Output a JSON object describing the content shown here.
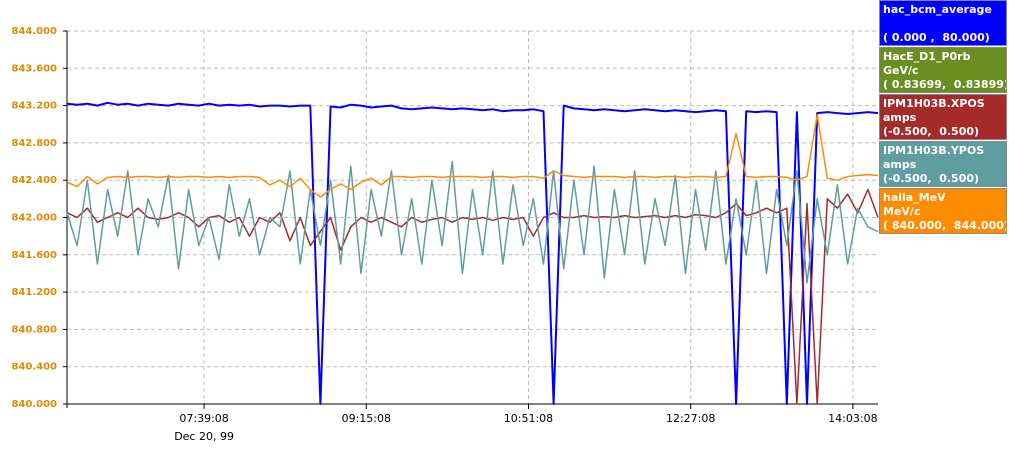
{
  "chart_data": {
    "type": "line",
    "date_label": "Dec 20, 99",
    "xlim": [
      "06:18:00",
      "14:18:00"
    ],
    "xticks": [
      "07:39:08",
      "09:15:08",
      "10:51:08",
      "12:27:08",
      "14:03:08"
    ],
    "ylim": [
      840,
      844
    ],
    "yticks": [
      {
        "value": 840,
        "label": "840.000"
      },
      {
        "value": 840.4,
        "label": "840.400"
      },
      {
        "value": 840.8,
        "label": "840.800"
      },
      {
        "value": 841.2,
        "label": "841.200"
      },
      {
        "value": 841.6,
        "label": "841.600"
      },
      {
        "value": 842,
        "label": "842.000"
      },
      {
        "value": 842.4,
        "label": "842.400"
      },
      {
        "value": 842.8,
        "label": "842.800"
      },
      {
        "value": 843.2,
        "label": "843.200"
      },
      {
        "value": 843.6,
        "label": "843.600"
      },
      {
        "value": 844,
        "label": "844.000"
      }
    ],
    "grid": true,
    "x": [
      "06:18:00",
      "06:24:00",
      "06:30:00",
      "06:36:00",
      "06:42:00",
      "06:48:00",
      "06:54:00",
      "07:00:00",
      "07:06:00",
      "07:12:00",
      "07:18:00",
      "07:24:00",
      "07:30:00",
      "07:36:00",
      "07:42:00",
      "07:48:00",
      "07:54:00",
      "08:00:00",
      "08:06:00",
      "08:12:00",
      "08:18:00",
      "08:24:00",
      "08:30:00",
      "08:36:00",
      "08:42:00",
      "08:48:00",
      "08:54:00",
      "09:00:00",
      "09:06:00",
      "09:12:00",
      "09:18:00",
      "09:24:00",
      "09:30:00",
      "09:36:00",
      "09:42:00",
      "09:48:00",
      "09:54:00",
      "10:00:00",
      "10:06:00",
      "10:12:00",
      "10:18:00",
      "10:24:00",
      "10:30:00",
      "10:36:00",
      "10:42:00",
      "10:48:00",
      "10:54:00",
      "11:00:00",
      "11:06:00",
      "11:12:00",
      "11:18:00",
      "11:24:00",
      "11:30:00",
      "11:36:00",
      "11:42:00",
      "11:48:00",
      "11:54:00",
      "12:00:00",
      "12:06:00",
      "12:12:00",
      "12:18:00",
      "12:24:00",
      "12:30:00",
      "12:36:00",
      "12:42:00",
      "12:48:00",
      "12:54:00",
      "13:00:00",
      "13:06:00",
      "13:12:00",
      "13:18:00",
      "13:24:00",
      "13:30:00",
      "13:36:00",
      "13:42:00",
      "13:48:00",
      "13:54:00",
      "14:00:00",
      "14:06:00",
      "14:12:00",
      "14:18:00"
    ],
    "series": [
      {
        "name": "hac_bcm_average",
        "range": "( 0.000 ,  80.000)",
        "color": "#0000ff",
        "values": [
          843.22,
          843.21,
          843.22,
          843.2,
          843.23,
          843.21,
          843.22,
          843.2,
          843.22,
          843.21,
          843.2,
          843.22,
          843.21,
          843.2,
          843.22,
          843.2,
          843.21,
          843.2,
          843.21,
          843.19,
          843.2,
          843.2,
          843.19,
          843.2,
          843.2,
          840.0,
          843.19,
          843.18,
          843.21,
          843.2,
          843.18,
          843.19,
          843.2,
          843.17,
          843.16,
          843.17,
          843.18,
          843.17,
          843.16,
          843.17,
          843.16,
          843.15,
          843.16,
          843.14,
          843.15,
          843.15,
          843.16,
          843.14,
          840.0,
          843.2,
          843.17,
          843.16,
          843.15,
          843.16,
          843.15,
          843.14,
          843.15,
          843.16,
          843.15,
          843.14,
          843.15,
          843.14,
          843.13,
          843.14,
          843.15,
          843.14,
          840.0,
          843.14,
          843.13,
          843.14,
          843.13,
          840.0,
          843.13,
          840.0,
          843.12,
          843.13,
          843.12,
          843.11,
          843.12,
          843.13,
          843.12
        ]
      },
      {
        "name": "HacE_D1_P0rb",
        "unit": "GeV/c",
        "range": "( 0.83699,  0.83899)",
        "color": "#6b8e23",
        "values": [
          null,
          null,
          null,
          null,
          null,
          null,
          null,
          null,
          null,
          null,
          null,
          null,
          null,
          null,
          null,
          null,
          null,
          null,
          null,
          null,
          null,
          null,
          null,
          null,
          null,
          null,
          null,
          null,
          null,
          null,
          null,
          null,
          null,
          null,
          null,
          null,
          null,
          null,
          null,
          null,
          null,
          null,
          null,
          null,
          null,
          null,
          null,
          null,
          null,
          null,
          null,
          null,
          null,
          null,
          null,
          null,
          null,
          null,
          null,
          null,
          null,
          null,
          null,
          null,
          null,
          null,
          null,
          null,
          null,
          null,
          null,
          null,
          null,
          null,
          null,
          null,
          null,
          null,
          null,
          null,
          null
        ]
      },
      {
        "name": "IPM1H03B.XPOS",
        "unit": "amps",
        "range": "(-0.500,  0.500)",
        "color": "#a52a2a",
        "values": [
          842.05,
          842.0,
          842.1,
          841.95,
          842.0,
          842.05,
          842.0,
          842.1,
          842.0,
          841.98,
          842.0,
          842.05,
          842.0,
          841.9,
          842.0,
          842.02,
          841.95,
          842.0,
          841.8,
          842.0,
          841.95,
          842.05,
          841.75,
          842.0,
          841.7,
          841.85,
          842.0,
          841.65,
          841.9,
          842.0,
          841.95,
          842.0,
          841.95,
          841.9,
          842.0,
          841.95,
          841.98,
          842.0,
          841.95,
          842.0,
          841.98,
          842.0,
          841.97,
          842.0,
          841.98,
          842.0,
          841.8,
          842.0,
          842.05,
          842.0,
          842.0,
          842.02,
          842.0,
          842.01,
          842.0,
          842.02,
          842.0,
          842.01,
          842.02,
          842.0,
          842.02,
          842.0,
          842.03,
          842.02,
          842.0,
          842.05,
          842.15,
          842.02,
          842.05,
          842.1,
          842.05,
          842.1,
          840.0,
          842.15,
          840.0,
          842.2,
          842.1,
          842.25,
          842.05,
          842.3,
          842.0
        ]
      },
      {
        "name": "IPM1H03B.YPOS",
        "unit": "amps",
        "range": "(-0.500,  0.500)",
        "color": "#5f9ea0",
        "values": [
          842.05,
          841.7,
          842.4,
          841.5,
          842.3,
          841.8,
          842.5,
          841.6,
          842.2,
          841.9,
          842.45,
          841.45,
          842.3,
          841.7,
          842.0,
          841.55,
          842.35,
          841.8,
          842.2,
          841.6,
          842.0,
          841.9,
          842.5,
          841.5,
          842.3,
          841.7,
          842.4,
          841.5,
          842.55,
          841.4,
          842.3,
          841.8,
          842.5,
          841.6,
          842.2,
          841.5,
          842.4,
          841.7,
          842.6,
          841.4,
          842.3,
          841.6,
          842.5,
          841.5,
          842.35,
          841.7,
          842.2,
          841.5,
          842.5,
          841.45,
          842.4,
          841.6,
          842.55,
          841.35,
          842.3,
          841.6,
          842.5,
          841.5,
          842.2,
          841.7,
          842.45,
          841.4,
          842.3,
          841.65,
          842.5,
          841.5,
          842.2,
          841.6,
          842.4,
          841.4,
          842.3,
          841.7,
          842.5,
          841.3,
          842.2,
          841.6,
          842.35,
          841.5,
          842.1,
          841.9,
          841.85
        ]
      },
      {
        "name": "halla_MeV",
        "unit": "MeV/c",
        "range": "( 840.000,  844.000)",
        "color": "#ff8c00",
        "values": [
          842.38,
          842.33,
          842.44,
          842.36,
          842.43,
          842.44,
          842.43,
          842.44,
          842.44,
          842.43,
          842.44,
          842.43,
          842.44,
          842.44,
          842.43,
          842.44,
          842.43,
          842.44,
          842.44,
          842.43,
          842.35,
          842.4,
          842.33,
          842.42,
          842.3,
          842.22,
          842.3,
          842.36,
          842.3,
          842.38,
          842.42,
          842.35,
          842.44,
          842.44,
          842.43,
          842.44,
          842.44,
          842.43,
          842.44,
          842.44,
          842.44,
          842.43,
          842.44,
          842.44,
          842.43,
          842.44,
          842.44,
          842.42,
          842.5,
          842.45,
          842.44,
          842.43,
          842.44,
          842.44,
          842.44,
          842.43,
          842.44,
          842.44,
          842.43,
          842.44,
          842.44,
          842.43,
          842.44,
          842.44,
          842.43,
          842.44,
          842.9,
          842.44,
          842.43,
          842.44,
          842.44,
          842.43,
          842.4,
          842.44,
          843.1,
          842.42,
          842.4,
          842.44,
          842.45,
          842.46,
          842.45
        ]
      }
    ]
  }
}
